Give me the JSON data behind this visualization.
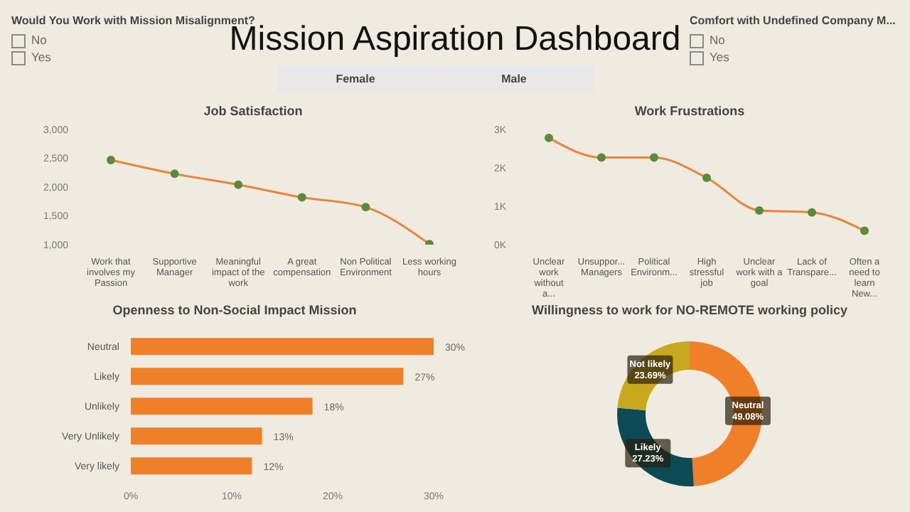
{
  "chart_data": [
    {
      "type": "other",
      "title": "Mission Aspiration Dashboard",
      "annotations": [
        "Would You Work with Mission Misalignment?",
        "No",
        "Yes",
        "Comfort with Undefined Company M...",
        "No",
        "Yes",
        "Female",
        "Male"
      ]
    },
    {
      "type": "line",
      "title": "Job Satisfaction",
      "categories": [
        "Work that involves my Passion",
        "Supportive Manager",
        "Meaningful impact of the work",
        "A great compensation",
        "Non Political Environment",
        "Less working hours"
      ],
      "values": [
        2470,
        2230,
        2040,
        1820,
        1650,
        1010
      ],
      "color": "#e8843a",
      "marker": "circle",
      "ylim": [
        1000,
        3000
      ],
      "yticks": [
        {
          "value": 1000,
          "label": "1,000"
        },
        {
          "value": 1500,
          "label": "1,500"
        },
        {
          "value": 2000,
          "label": "2,000"
        },
        {
          "value": 2500,
          "label": "2,500"
        },
        {
          "value": 3000,
          "label": "3,000"
        }
      ]
    },
    {
      "type": "line",
      "title": "Work Frustrations",
      "categories": [
        "Unclear work without a...",
        "Unsuppor... Managers",
        "Political Environm...",
        "High stressful job",
        "Unclear work with a goal",
        "Lack of Transpare...",
        "Often a need to learn New..."
      ],
      "values": [
        2780,
        2270,
        2270,
        1740,
        890,
        840,
        360
      ],
      "color": "#e8843a",
      "marker": "circle",
      "ylim": [
        0,
        3000
      ],
      "yticks": [
        {
          "value": 0,
          "label": "0K"
        },
        {
          "value": 1000,
          "label": "1K"
        },
        {
          "value": 2000,
          "label": "2K"
        },
        {
          "value": 3000,
          "label": "3K"
        }
      ]
    },
    {
      "type": "bar",
      "orientation": "horizontal",
      "title": "Openness to Non-Social Impact Mission",
      "categories": [
        "Neutral",
        "Likely",
        "Unlikely",
        "Very Unlikely",
        "Very likely"
      ],
      "values": [
        30,
        27,
        18,
        13,
        12
      ],
      "value_labels": [
        "30%",
        "27%",
        "18%",
        "13%",
        "12%"
      ],
      "color": "#f07f2a",
      "xlim": [
        0,
        30
      ],
      "xticks": [
        {
          "value": 0,
          "label": "0%"
        },
        {
          "value": 10,
          "label": "10%"
        },
        {
          "value": 20,
          "label": "20%"
        },
        {
          "value": 30,
          "label": "30%"
        }
      ]
    },
    {
      "type": "donut",
      "title": "Willingness to work for NO-REMOTE working policy",
      "categories": [
        "Neutral",
        "Likely",
        "Not likely"
      ],
      "values": [
        49.08,
        27.23,
        23.69
      ],
      "value_labels": [
        "49.08%",
        "27.23%",
        "23.69%"
      ],
      "colors": [
        "#f07f2a",
        "#0c4a55",
        "#c8a81e"
      ]
    }
  ]
}
